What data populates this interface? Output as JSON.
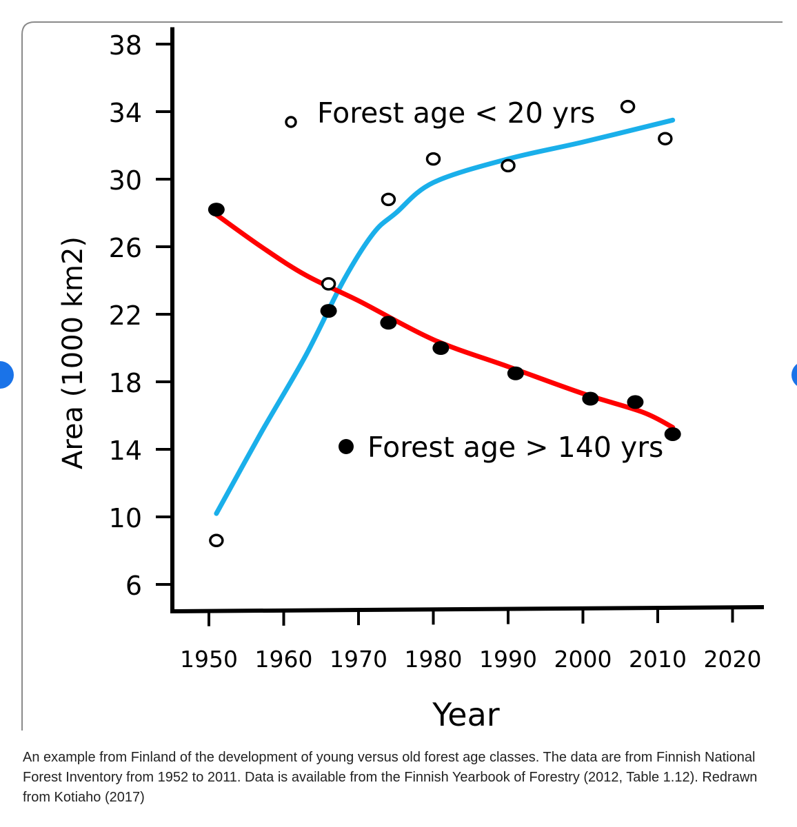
{
  "chart_data": {
    "type": "scatter",
    "title": "",
    "xlabel": "Year",
    "ylabel": "Area (1000 km2)",
    "xlim": [
      1946,
      2026
    ],
    "ylim": [
      5,
      39
    ],
    "x_ticks": [
      "1950",
      "1960",
      "1970",
      "1980",
      "1990",
      "2000",
      "2010",
      "2020"
    ],
    "y_ticks": [
      "38",
      "34",
      "30",
      "26",
      "22",
      "18",
      "14",
      "10",
      "6"
    ],
    "grid": false,
    "series": [
      {
        "name": "Forest age < 20 yrs",
        "marker": "open-circle",
        "color": "#000000",
        "points": [
          [
            1951,
            8.6
          ],
          [
            1966,
            23.8
          ],
          [
            1974,
            28.8
          ],
          [
            1980,
            31.2
          ],
          [
            1990,
            30.8
          ],
          [
            2006,
            34.3
          ],
          [
            2011,
            32.4
          ]
        ]
      },
      {
        "name": "Forest age > 140 yrs",
        "marker": "filled-circle",
        "color": "#000000",
        "points": [
          [
            1951,
            28.2
          ],
          [
            1966,
            22.2
          ],
          [
            1974,
            21.5
          ],
          [
            1981,
            20.0
          ],
          [
            1991,
            18.5
          ],
          [
            2001,
            17.0
          ],
          [
            2007,
            16.8
          ],
          [
            2012,
            14.9
          ]
        ]
      }
    ],
    "trend_lines": [
      {
        "series": "Forest age < 20 yrs",
        "color": "#1aafea",
        "points": [
          [
            1951,
            10.2
          ],
          [
            1957,
            15.0
          ],
          [
            1963,
            19.6
          ],
          [
            1968,
            24.0
          ],
          [
            1972,
            26.8
          ],
          [
            1975,
            28.0
          ],
          [
            1980,
            29.8
          ],
          [
            1990,
            31.2
          ],
          [
            2000,
            32.2
          ],
          [
            2012,
            33.5
          ]
        ]
      },
      {
        "series": "Forest age > 140 yrs",
        "color": "#ff0000",
        "points": [
          [
            1951,
            27.9
          ],
          [
            1957,
            26.0
          ],
          [
            1963,
            24.3
          ],
          [
            1970,
            22.8
          ],
          [
            1980,
            20.5
          ],
          [
            1990,
            18.9
          ],
          [
            2000,
            17.3
          ],
          [
            2008,
            16.2
          ],
          [
            2012,
            15.3
          ]
        ]
      }
    ],
    "legend": [
      {
        "label": "Forest age < 20 yrs",
        "marker": "open-circle",
        "placement": "top-center"
      },
      {
        "label": "Forest age > 140 yrs",
        "marker": "filled-circle",
        "placement": "lower-right"
      }
    ]
  },
  "caption": "An example from Finland of the development of young versus old forest age classes. The data are from Finnish National Forest Inventory from 1952 to 2011. Data is available from the Finnish Yearbook of Forestry (2012, Table 1.12). Redrawn from Kotiaho (2017)",
  "colors": {
    "accent": "#1a73e8",
    "young_line": "#1aafea",
    "old_line": "#ff0000"
  }
}
